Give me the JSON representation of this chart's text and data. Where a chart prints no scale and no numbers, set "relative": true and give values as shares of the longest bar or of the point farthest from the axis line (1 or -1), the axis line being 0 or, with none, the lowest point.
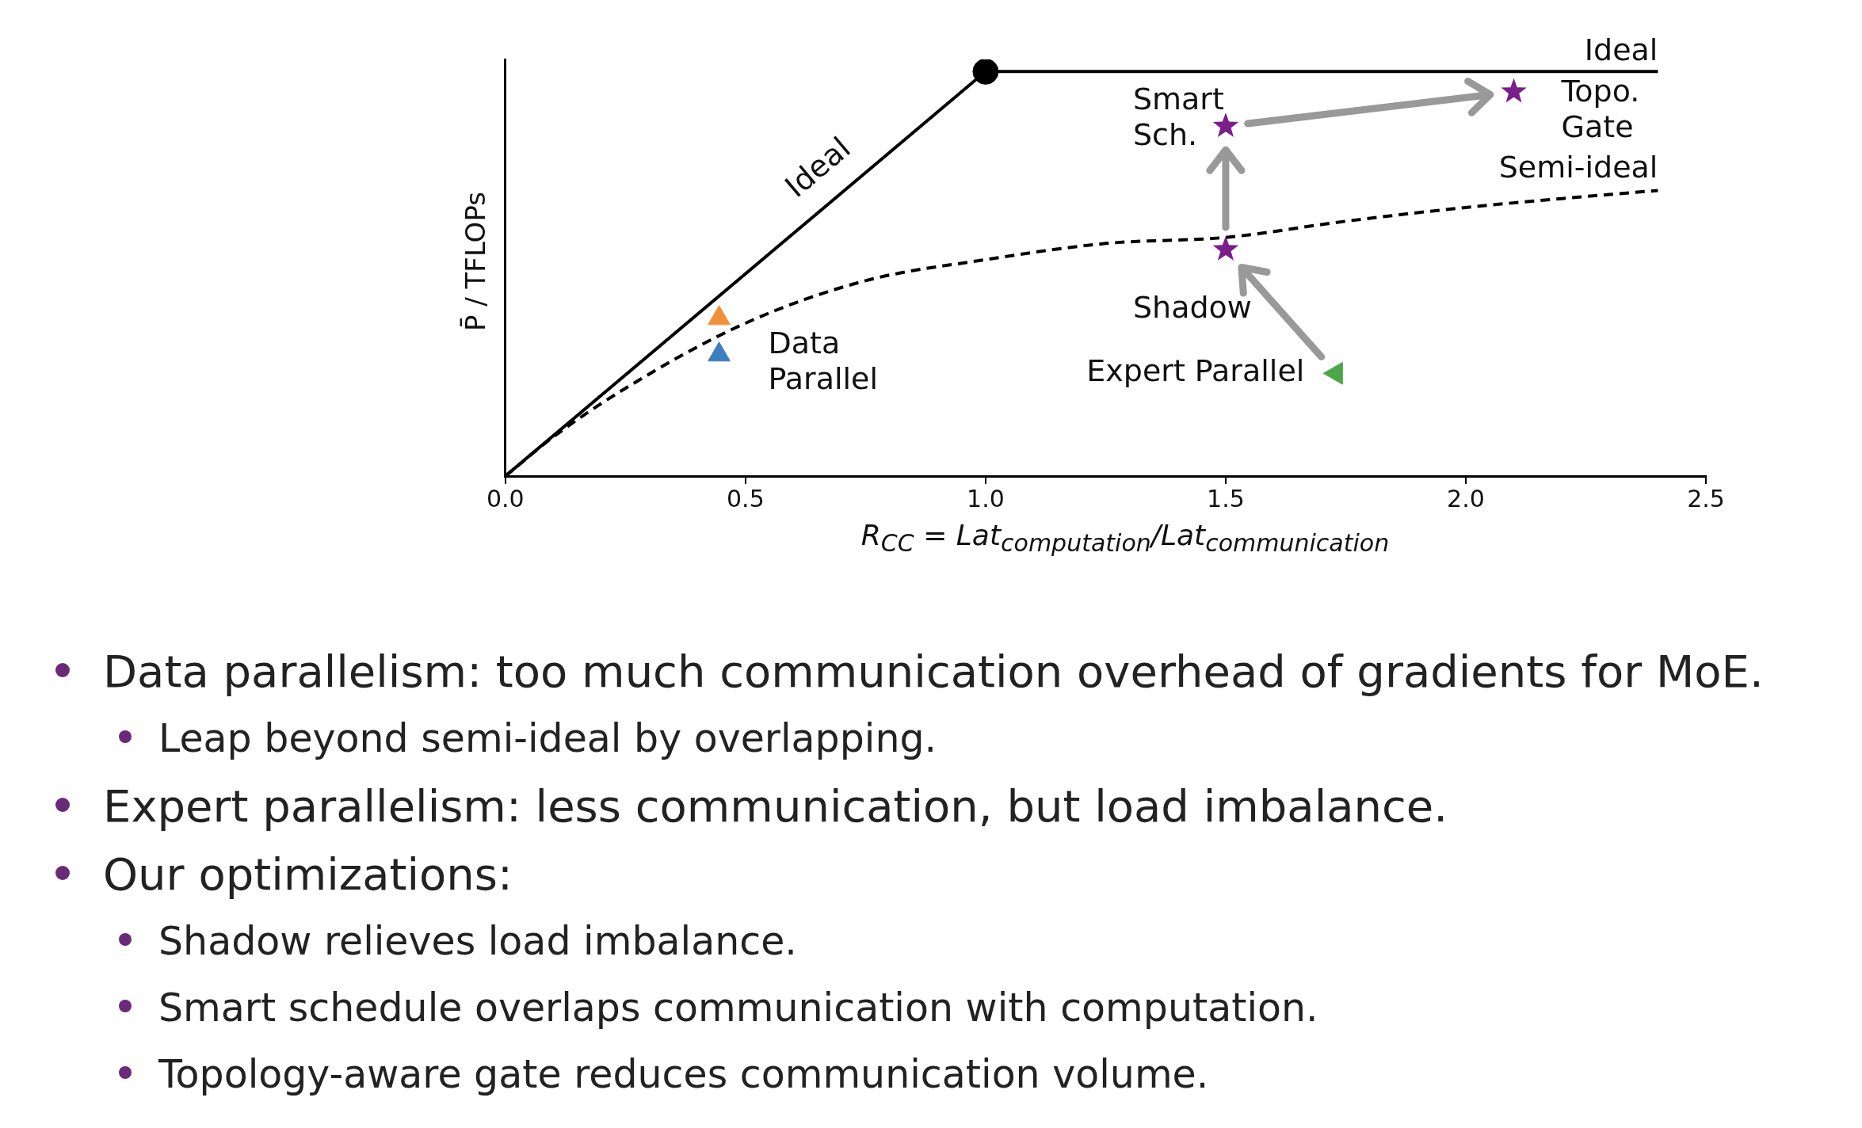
{
  "chart_data": {
    "type": "scatter",
    "relative": true,
    "xlabel": "R$_{CC}$ = Lat$_{computation}$/Lat$_{communication}$",
    "ylabel": "P̄ / TFLOPs",
    "xlim": [
      0,
      2.5
    ],
    "xticks": [
      {
        "value": 0,
        "label": "0.0"
      },
      {
        "value": 0.5,
        "label": "0.5"
      },
      {
        "value": 1,
        "label": "1.0"
      },
      {
        "value": 1.5,
        "label": "1.5"
      },
      {
        "value": 2,
        "label": "2.0"
      },
      {
        "value": 2.5,
        "label": "2.5"
      }
    ],
    "grid": false,
    "legend": false,
    "series": [
      {
        "type": "line",
        "x": [
          0,
          1,
          2.4
        ],
        "values": [
          0,
          1,
          1
        ],
        "color": "#000000",
        "marker": "none",
        "line_style": "solid"
      },
      {
        "type": "scatter",
        "x": [
          1
        ],
        "values": [
          1
        ],
        "color": "#000000",
        "marker": "circle"
      },
      {
        "type": "line",
        "x": [
          0,
          0.1,
          0.25,
          0.5,
          0.75,
          1,
          1.25,
          1.5,
          1.75,
          2,
          2.2,
          2.4
        ],
        "values": [
          0,
          0.097,
          0.217,
          0.378,
          0.483,
          0.535,
          0.575,
          0.59,
          0.63,
          0.664,
          0.686,
          0.706
        ],
        "color": "#000000",
        "marker": "none",
        "line_style": "dashed"
      },
      {
        "type": "scatter",
        "x": [
          0.445
        ],
        "values": [
          0.39
        ],
        "color": "#f0913a",
        "marker": "triangle"
      },
      {
        "type": "scatter",
        "x": [
          0.445
        ],
        "values": [
          0.3
        ],
        "color": "#3b7fc1",
        "marker": "triangle"
      },
      {
        "type": "scatter",
        "x": [
          1.73
        ],
        "values": [
          0.254
        ],
        "color": "#4aa84a",
        "marker": "triangle-left"
      },
      {
        "type": "scatter",
        "x": [
          1.5,
          1.5,
          2.1
        ],
        "values": [
          0.56,
          0.865,
          0.95
        ],
        "color": "#7b1d8a",
        "marker": "star"
      }
    ],
    "annotations": [
      {
        "text": "Ideal",
        "x": 0.7,
        "y": 0.7
      },
      {
        "text": "Ideal",
        "x": 2.4,
        "y": 1
      },
      {
        "text": "Semi-ideal",
        "x": 2.4,
        "y": 0.706
      },
      {
        "text": "Data\nParallel",
        "x": 0.445,
        "y": 0.3
      },
      {
        "text": "Shadow",
        "x": 1.5,
        "y": 0.56
      },
      {
        "text": "Expert Parallel",
        "x": 1.73,
        "y": 0.254
      },
      {
        "text": "Smart\nSch.",
        "x": 1.5,
        "y": 0.865
      },
      {
        "text": "Topo.\nGate",
        "x": 2.1,
        "y": 0.95
      },
      "Data parallelism: too much communication overhead of gradients for MoE.",
      "Leap beyond semi-ideal by overlapping.",
      "Expert parallelism: less communication, but load imbalance.",
      "Our optimizations:",
      "Shadow relieves load imbalance.",
      "Smart schedule overlaps communication with computation.",
      "Topology-aware gate reduces communication volume."
    ]
  }
}
